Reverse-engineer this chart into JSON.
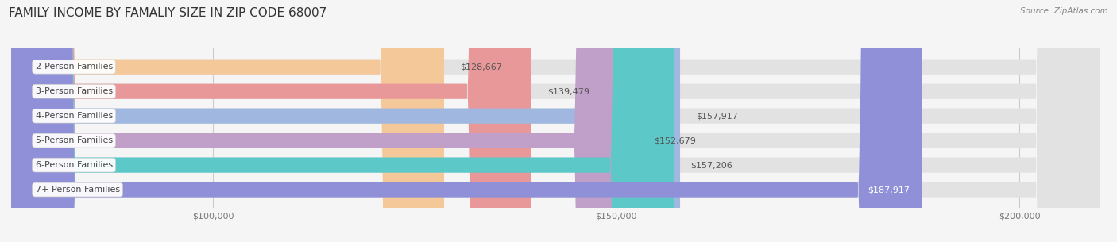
{
  "title": "FAMILY INCOME BY FAMALIY SIZE IN ZIP CODE 68007",
  "source": "Source: ZipAtlas.com",
  "categories": [
    "2-Person Families",
    "3-Person Families",
    "4-Person Families",
    "5-Person Families",
    "6-Person Families",
    "7+ Person Families"
  ],
  "values": [
    128667,
    139479,
    157917,
    152679,
    157206,
    187917
  ],
  "bar_colors": [
    "#f5c89a",
    "#e89898",
    "#a0b8e0",
    "#c0a0c8",
    "#5cc8c8",
    "#9090d8"
  ],
  "value_labels": [
    "$128,667",
    "$139,479",
    "$157,917",
    "$152,679",
    "$157,206",
    "$187,917"
  ],
  "xlim": [
    75000,
    210000
  ],
  "xticks": [
    100000,
    150000,
    200000
  ],
  "xtick_labels": [
    "$100,000",
    "$150,000",
    "$200,000"
  ],
  "bar_height": 0.62,
  "background_color": "#f5f5f5",
  "bar_bg_color": "#e2e2e2",
  "title_fontsize": 11,
  "label_fontsize": 8,
  "value_fontsize": 8,
  "axis_fontsize": 8
}
